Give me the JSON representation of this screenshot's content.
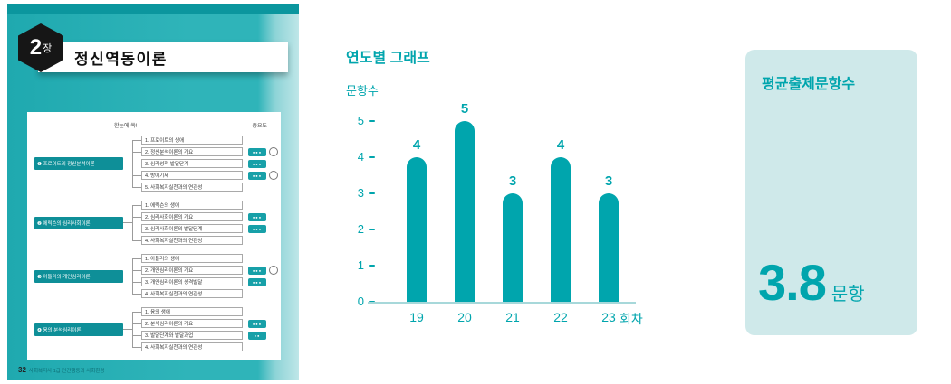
{
  "colors": {
    "accent": "#00A5AD",
    "page_teal": "#2FB4B9",
    "page_teal_dark": "#0B969E",
    "node_dark": "#0E8F98",
    "dots_box": "#17A0A8",
    "avg_box_bg": "#CFE9EA",
    "axis_line": "#A7D8DA",
    "hexagon": "#161616"
  },
  "book_page": {
    "chapter_number": "2",
    "chapter_suffix": "장",
    "chapter_title": "정신역동이론",
    "header_left": "한눈에 쏙!",
    "header_right": "중요도",
    "sections": [
      {
        "title": "❶ 프로이드의 정신분석이론",
        "items": [
          {
            "label": "1. 프로이트의 생애",
            "dots": 0,
            "badge": false
          },
          {
            "label": "2. 정신분석이론의 개요",
            "dots": 3,
            "badge": true
          },
          {
            "label": "3. 심리성적 발달단계",
            "dots": 3,
            "badge": false
          },
          {
            "label": "4. 방어기제",
            "dots": 3,
            "badge": true
          },
          {
            "label": "5. 사회복지실천과의 연관성",
            "dots": 0,
            "badge": false
          }
        ]
      },
      {
        "title": "❷ 에릭슨의 심리사회이론",
        "items": [
          {
            "label": "1. 에릭슨의 생애",
            "dots": 0,
            "badge": false
          },
          {
            "label": "2. 심리사회이론의 개요",
            "dots": 3,
            "badge": false
          },
          {
            "label": "3. 심리사회이론의 발달단계",
            "dots": 3,
            "badge": false
          },
          {
            "label": "4. 사회복지실천과의 연관성",
            "dots": 0,
            "badge": false
          }
        ]
      },
      {
        "title": "❸ 아들러의 개인심리이론",
        "items": [
          {
            "label": "1. 아들러의 생애",
            "dots": 0,
            "badge": false
          },
          {
            "label": "2. 개인심리이론의 개요",
            "dots": 3,
            "badge": true
          },
          {
            "label": "3. 개인심리이론의 성격발달",
            "dots": 3,
            "badge": false
          },
          {
            "label": "4. 사회복지실천과의 연관성",
            "dots": 0,
            "badge": false
          }
        ]
      },
      {
        "title": "❹ 융의 분석심리이론",
        "items": [
          {
            "label": "1. 융의 생애",
            "dots": 0,
            "badge": false
          },
          {
            "label": "2. 분석심리이론의 개요",
            "dots": 3,
            "badge": false
          },
          {
            "label": "3. 발달단계와 발달과업",
            "dots": 2,
            "badge": false
          },
          {
            "label": "4. 사회복지실천과의 연관성",
            "dots": 0,
            "badge": false
          }
        ]
      }
    ],
    "footer_page": "32",
    "footer_text": "사회복지사 1급 인간행동과 사회환경"
  },
  "chart_data": {
    "type": "bar",
    "title": "연도별 그래프",
    "ylabel": "문항수",
    "xlabel": "회차",
    "categories": [
      "19",
      "20",
      "21",
      "22",
      "23"
    ],
    "values": [
      4,
      5,
      3,
      4,
      3
    ],
    "ylim": [
      0,
      5
    ],
    "yticks": [
      0,
      1,
      2,
      3,
      4,
      5
    ],
    "grid": false,
    "legend": "none",
    "bar_color": "#00A5AD"
  },
  "average_box": {
    "title": "평균출제문항수",
    "value": "3.8",
    "unit": "문항"
  }
}
